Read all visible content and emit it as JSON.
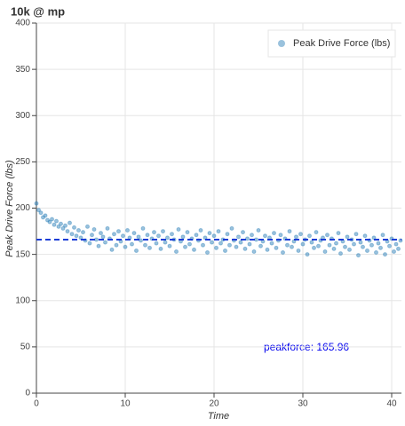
{
  "chart_data": {
    "type": "scatter",
    "title": "10k @ mp",
    "x_label": "Time",
    "y_label": "Peak Drive Force (lbs)",
    "annotation": "peakforce: 165.96",
    "mean_line": 165.96,
    "mean_line_color": "#1a3cd6",
    "xlim": [
      0,
      41.1
    ],
    "xticks": [
      0,
      10,
      20,
      30,
      40
    ],
    "ylim": [
      0,
      400
    ],
    "yticks": [
      0,
      50,
      100,
      150,
      200,
      250,
      300,
      350,
      400
    ],
    "grid": true,
    "legend": "top-right",
    "series": [
      {
        "name": "Peak Drive Force (lbs)",
        "color": "#1f77b4",
        "x": [
          0,
          0.25,
          0.5,
          0.75,
          1,
          1.25,
          1.5,
          1.75,
          2,
          2.25,
          2.5,
          2.75,
          3,
          3.25,
          3.5,
          3.75,
          4,
          4.25,
          4.5,
          4.75,
          5,
          5.25,
          5.5,
          5.75,
          6,
          6.25,
          6.5,
          6.75,
          7,
          7.25,
          7.5,
          7.75,
          8,
          8.25,
          8.5,
          8.75,
          9,
          9.25,
          9.5,
          9.75,
          10,
          10.25,
          10.5,
          10.75,
          11,
          11.25,
          11.5,
          11.75,
          12,
          12.25,
          12.5,
          12.75,
          13,
          13.25,
          13.5,
          13.75,
          14,
          14.25,
          14.5,
          14.75,
          15,
          15.25,
          15.5,
          15.75,
          16,
          16.25,
          16.5,
          16.75,
          17,
          17.25,
          17.5,
          17.75,
          18,
          18.25,
          18.5,
          18.75,
          19,
          19.25,
          19.5,
          19.75,
          20,
          20.25,
          20.5,
          20.75,
          21,
          21.25,
          21.5,
          21.75,
          22,
          22.25,
          22.5,
          22.75,
          23,
          23.25,
          23.5,
          23.75,
          24,
          24.25,
          24.5,
          24.75,
          25,
          25.25,
          25.5,
          25.75,
          26,
          26.25,
          26.5,
          26.75,
          27,
          27.25,
          27.5,
          27.75,
          28,
          28.25,
          28.5,
          28.75,
          29,
          29.25,
          29.5,
          29.75,
          30,
          30.25,
          30.5,
          30.75,
          31,
          31.25,
          31.5,
          31.75,
          32,
          32.25,
          32.5,
          32.75,
          33,
          33.25,
          33.5,
          33.75,
          34,
          34.25,
          34.5,
          34.75,
          35,
          35.25,
          35.5,
          35.75,
          36,
          36.25,
          36.5,
          36.75,
          37,
          37.25,
          37.5,
          37.75,
          38,
          38.25,
          38.5,
          38.75,
          39,
          39.25,
          39.5,
          39.75,
          40,
          40.25,
          40.5,
          40.75,
          41
        ],
        "values": [
          205,
          198,
          195,
          190,
          192,
          187,
          185,
          188,
          182,
          186,
          180,
          183,
          178,
          181,
          175,
          184,
          172,
          179,
          170,
          176,
          168,
          174,
          165,
          180,
          162,
          171,
          177,
          166,
          159,
          173,
          169,
          163,
          178,
          167,
          155,
          172,
          160,
          175,
          164,
          170,
          158,
          176,
          168,
          161,
          173,
          154,
          169,
          165,
          178,
          160,
          171,
          157,
          167,
          174,
          162,
          170,
          156,
          175,
          163,
          168,
          159,
          172,
          166,
          153,
          177,
          164,
          169,
          158,
          174,
          161,
          167,
          155,
          171,
          165,
          176,
          160,
          168,
          152,
          173,
          163,
          170,
          157,
          175,
          162,
          166,
          154,
          172,
          160,
          178,
          165,
          158,
          169,
          163,
          174,
          156,
          167,
          161,
          171,
          153,
          166,
          176,
          159,
          164,
          170,
          155,
          168,
          162,
          173,
          157,
          165,
          171,
          152,
          167,
          160,
          175,
          158,
          164,
          169,
          154,
          172,
          161,
          166,
          150,
          170,
          163,
          157,
          174,
          159,
          165,
          168,
          153,
          171,
          160,
          167,
          156,
          162,
          173,
          151,
          164,
          158,
          169,
          155,
          166,
          161,
          172,
          149,
          163,
          158,
          170,
          154,
          165,
          160,
          168,
          152,
          162,
          157,
          171,
          150,
          164,
          159,
          167,
          153,
          161,
          156,
          165
        ]
      }
    ]
  }
}
